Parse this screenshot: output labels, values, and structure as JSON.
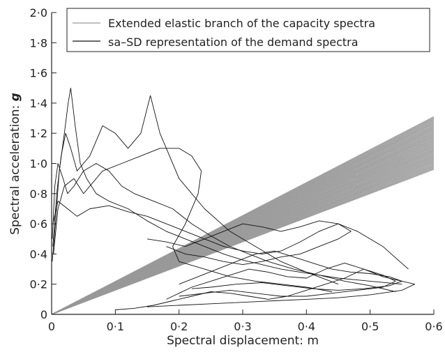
{
  "chart_data": {
    "type": "line",
    "title": "",
    "xlabel": "Spectral displacement: m",
    "ylabel_prefix": "Spectral acceleration: ",
    "ylabel_unit": "g",
    "xlim": [
      0,
      0.6
    ],
    "ylim": [
      0,
      2.0
    ],
    "x_ticks": [
      0,
      0.1,
      0.2,
      0.3,
      0.4,
      0.5,
      0.6
    ],
    "x_tick_labels": [
      "0",
      "0·1",
      "0·2",
      "0·3",
      "0·4",
      "0·5",
      "0·6"
    ],
    "y_ticks": [
      0,
      0.2,
      0.4,
      0.6,
      0.8,
      1.0,
      1.2,
      1.4,
      1.6,
      1.8,
      2.0
    ],
    "y_tick_labels": [
      "0",
      "0·2",
      "0·4",
      "0·6",
      "0·8",
      "1·0",
      "1·2",
      "1·4",
      "1·6",
      "1·8",
      "2·0"
    ],
    "grid": false,
    "legend_position": "top-right",
    "series": [
      {
        "name": "Extended elastic branch of the capacity spectra",
        "color": "#999999",
        "line_style": "fan of straight lines from origin",
        "x": [
          0,
          0.6
        ],
        "y_end_range": [
          0.96,
          1.31
        ]
      },
      {
        "name": "sa–SD representation of the demand spectra",
        "color": "#111111",
        "line_style": "thin black spectra loops",
        "paths": [
          {
            "x": [
              0.001,
              0.006,
              0.012,
              0.02,
              0.026,
              0.03,
              0.037,
              0.045,
              0.055,
              0.07,
              0.09,
              0.12,
              0.15,
              0.18,
              0.21,
              0.24,
              0.27,
              0.3,
              0.33,
              0.36,
              0.39,
              0.42,
              0.45,
              0.5,
              0.55
            ],
            "y": [
              0.35,
              0.6,
              0.95,
              1.2,
              1.4,
              1.5,
              1.25,
              1.0,
              0.9,
              0.8,
              0.75,
              0.7,
              0.62,
              0.55,
              0.5,
              0.45,
              0.4,
              0.36,
              0.33,
              0.3,
              0.28,
              0.26,
              0.24,
              0.22,
              0.2
            ]
          },
          {
            "x": [
              0.002,
              0.008,
              0.015,
              0.022,
              0.03,
              0.04,
              0.06,
              0.08,
              0.1,
              0.12,
              0.14,
              0.155,
              0.17,
              0.2,
              0.24,
              0.28,
              0.32,
              0.36,
              0.4,
              0.45
            ],
            "y": [
              0.45,
              0.8,
              1.05,
              1.2,
              1.1,
              0.95,
              1.05,
              1.25,
              1.2,
              1.1,
              1.2,
              1.45,
              1.2,
              0.9,
              0.7,
              0.55,
              0.45,
              0.35,
              0.28,
              0.2
            ]
          },
          {
            "x": [
              0.001,
              0.005,
              0.01,
              0.018,
              0.025,
              0.035,
              0.05,
              0.07,
              0.09,
              0.11,
              0.13,
              0.16,
              0.19,
              0.22,
              0.25,
              0.28,
              0.31,
              0.34,
              0.38,
              0.42,
              0.46,
              0.5,
              0.54
            ],
            "y": [
              0.5,
              0.85,
              1.0,
              0.9,
              0.8,
              0.85,
              0.95,
              1.0,
              0.95,
              0.85,
              0.8,
              0.75,
              0.7,
              0.6,
              0.52,
              0.45,
              0.4,
              0.35,
              0.3,
              0.26,
              0.22,
              0.19,
              0.15
            ]
          },
          {
            "x": [
              0.003,
              0.01,
              0.02,
              0.035,
              0.05,
              0.08,
              0.11,
              0.14,
              0.17,
              0.2,
              0.22,
              0.235,
              0.23,
              0.21,
              0.19,
              0.2,
              0.24,
              0.28,
              0.32,
              0.36,
              0.4,
              0.44
            ],
            "y": [
              0.4,
              0.7,
              0.85,
              0.9,
              0.8,
              0.95,
              1.0,
              1.05,
              1.1,
              1.1,
              1.05,
              0.95,
              0.8,
              0.6,
              0.45,
              0.35,
              0.3,
              0.25,
              0.22,
              0.2,
              0.18,
              0.15
            ]
          },
          {
            "x": [
              0.002,
              0.01,
              0.025,
              0.04,
              0.06,
              0.09,
              0.12,
              0.15,
              0.18,
              0.21,
              0.24,
              0.27,
              0.3,
              0.33,
              0.36,
              0.39,
              0.42,
              0.45,
              0.48,
              0.52,
              0.56
            ],
            "y": [
              0.6,
              0.75,
              0.7,
              0.65,
              0.7,
              0.72,
              0.68,
              0.65,
              0.6,
              0.55,
              0.5,
              0.45,
              0.42,
              0.4,
              0.42,
              0.48,
              0.55,
              0.6,
              0.55,
              0.45,
              0.3
            ]
          },
          {
            "x": [
              0.15,
              0.18,
              0.21,
              0.24,
              0.27,
              0.3,
              0.33,
              0.36,
              0.39,
              0.42,
              0.45,
              0.47,
              0.45,
              0.42,
              0.39,
              0.36,
              0.33,
              0.3,
              0.27,
              0.24,
              0.21,
              0.18
            ],
            "y": [
              0.5,
              0.48,
              0.45,
              0.5,
              0.55,
              0.6,
              0.58,
              0.55,
              0.58,
              0.62,
              0.6,
              0.55,
              0.5,
              0.45,
              0.4,
              0.38,
              0.35,
              0.33,
              0.35,
              0.38,
              0.4,
              0.45
            ]
          },
          {
            "x": [
              0.1,
              0.13,
              0.16,
              0.19,
              0.22,
              0.25,
              0.28,
              0.31,
              0.34,
              0.37,
              0.4,
              0.43,
              0.46,
              0.49,
              0.52,
              0.55,
              0.57,
              0.55,
              0.5,
              0.45,
              0.4,
              0.35,
              0.3,
              0.25,
              0.2,
              0.15
            ],
            "y": [
              0.03,
              0.04,
              0.06,
              0.09,
              0.12,
              0.15,
              0.14,
              0.12,
              0.1,
              0.12,
              0.16,
              0.2,
              0.24,
              0.3,
              0.25,
              0.22,
              0.2,
              0.16,
              0.13,
              0.11,
              0.1,
              0.09,
              0.08,
              0.07,
              0.06,
              0.05
            ]
          },
          {
            "x": [
              0.18,
              0.2,
              0.22,
              0.25,
              0.28,
              0.31,
              0.34,
              0.37,
              0.4,
              0.43,
              0.46,
              0.49,
              0.52,
              0.54,
              0.52,
              0.48,
              0.44,
              0.4,
              0.36,
              0.32,
              0.28,
              0.24,
              0.2
            ],
            "y": [
              0.1,
              0.14,
              0.18,
              0.22,
              0.26,
              0.3,
              0.28,
              0.25,
              0.24,
              0.3,
              0.34,
              0.3,
              0.26,
              0.22,
              0.18,
              0.16,
              0.14,
              0.12,
              0.12,
              0.14,
              0.16,
              0.14,
              0.12
            ]
          },
          {
            "x": [
              0.2,
              0.23,
              0.26,
              0.29,
              0.32,
              0.35,
              0.38,
              0.41,
              0.44,
              0.47,
              0.5,
              0.53,
              0.55,
              0.53,
              0.49,
              0.45,
              0.41,
              0.37,
              0.33,
              0.29,
              0.25,
              0.22
            ],
            "y": [
              0.2,
              0.25,
              0.3,
              0.35,
              0.4,
              0.42,
              0.38,
              0.34,
              0.3,
              0.28,
              0.27,
              0.25,
              0.22,
              0.19,
              0.17,
              0.16,
              0.17,
              0.19,
              0.21,
              0.2,
              0.18,
              0.17
            ]
          }
        ]
      }
    ]
  }
}
